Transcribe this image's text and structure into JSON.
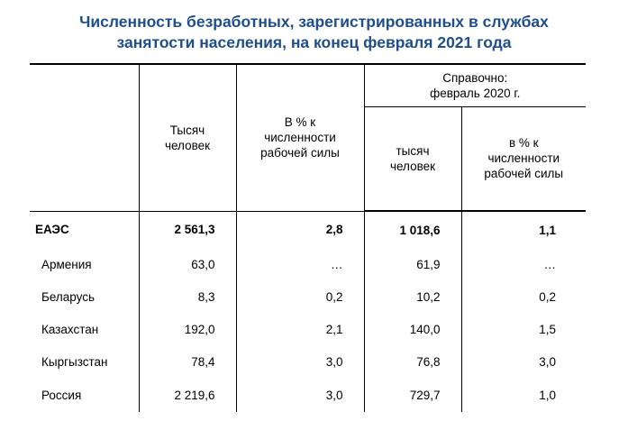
{
  "title": {
    "line1": "Численность безработных, зарегистрированных в службах",
    "line2": "занятости населения, на конец февраля 2021 года"
  },
  "header": {
    "thousand_people": "Тысяч человек",
    "pct_labor": "В % к численности рабочей силы",
    "reference": "Справочно: февраль 2020 г.",
    "ref_thousand_people": "тысяч человек",
    "ref_pct_labor": "в % к численности рабочей силы"
  },
  "rows": [
    {
      "name": "ЕАЭС",
      "v2021": "2 561,3",
      "pct2021": "2,8",
      "v2020": "1 018,6",
      "pct2020": "1,1"
    },
    {
      "name": "Армения",
      "v2021": "63,0",
      "pct2021": "…",
      "v2020": "61,9",
      "pct2020": "…"
    },
    {
      "name": "Беларусь",
      "v2021": "8,3",
      "pct2021": "0,2",
      "v2020": "10,2",
      "pct2020": "0,2"
    },
    {
      "name": "Казахстан",
      "v2021": "192,0",
      "pct2021": "2,1",
      "v2020": "140,0",
      "pct2020": "1,5"
    },
    {
      "name": "Кыргызстан",
      "v2021": "78,4",
      "pct2021": "3,0",
      "v2020": "76,8",
      "pct2020": "3,0"
    },
    {
      "name": "Россия",
      "v2021": "2 219,6",
      "pct2021": "3,0",
      "v2020": "729,7",
      "pct2020": "1,0"
    }
  ]
}
